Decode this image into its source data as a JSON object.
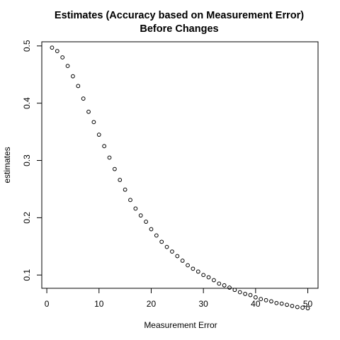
{
  "chart_data": {
    "type": "scatter",
    "title": "Estimates (Accuracy based on Measurement Error)",
    "subtitle": "Before Changes",
    "xlabel": "Measurement Error",
    "ylabel": "estimates",
    "xlim": [
      -0.96,
      51.96
    ],
    "ylim": [
      0.0768,
      0.5072
    ],
    "x_ticks": [
      0,
      10,
      20,
      30,
      40,
      50
    ],
    "y_ticks": [
      0.1,
      0.2,
      0.3,
      0.4,
      0.5
    ],
    "x_tick_labels": [
      "0",
      "10",
      "20",
      "30",
      "40",
      "50"
    ],
    "y_tick_labels": [
      "0.1",
      "0.2",
      "0.3",
      "0.4",
      "0.5"
    ],
    "grid": false,
    "legend": "none",
    "marker": "open-circle",
    "x": [
      1,
      2,
      3,
      4,
      5,
      6,
      7,
      8,
      9,
      10,
      11,
      12,
      13,
      14,
      15,
      16,
      17,
      18,
      19,
      20,
      21,
      22,
      23,
      24,
      25,
      26,
      27,
      28,
      29,
      30,
      31,
      32,
      33,
      34,
      35,
      36,
      37,
      38,
      39,
      40,
      41,
      42,
      43,
      44,
      45,
      46,
      47,
      48,
      49,
      50
    ],
    "y": [
      0.497,
      0.491,
      0.48,
      0.465,
      0.447,
      0.43,
      0.408,
      0.385,
      0.367,
      0.345,
      0.325,
      0.305,
      0.285,
      0.266,
      0.249,
      0.231,
      0.216,
      0.204,
      0.193,
      0.18,
      0.169,
      0.158,
      0.149,
      0.141,
      0.133,
      0.125,
      0.117,
      0.111,
      0.106,
      0.1,
      0.096,
      0.091,
      0.085,
      0.082,
      0.078,
      0.074,
      0.07,
      0.067,
      0.065,
      0.061,
      0.058,
      0.056,
      0.054,
      0.051,
      0.05,
      0.048,
      0.046,
      0.044,
      0.043,
      0.042
    ]
  }
}
